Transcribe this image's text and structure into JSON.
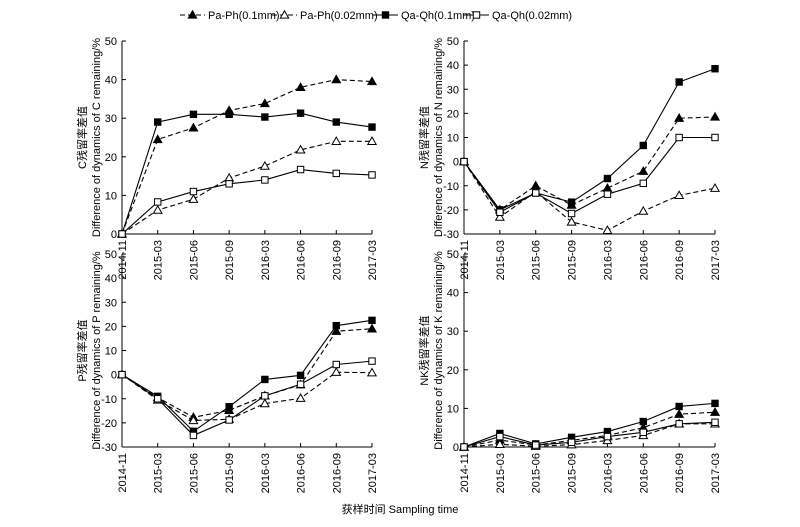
{
  "figure": {
    "xlabel": "获样时间 Sampling time"
  },
  "legend": [
    {
      "label": "Pa-Ph(0.1mm)",
      "marker": "filled-triangle",
      "dash": true
    },
    {
      "label": "Pa-Ph(0.02mm)",
      "marker": "open-triangle",
      "dash": true
    },
    {
      "label": "Qa-Qh(0.1mm)",
      "marker": "filled-square",
      "dash": false
    },
    {
      "label": "Qa-Qh(0.02mm)",
      "marker": "open-square",
      "dash": false
    }
  ],
  "chart_data": [
    {
      "type": "line",
      "ylabel_cn": "C残留率差值",
      "ylabel_en": "Difference of dynamics of C remaining/%",
      "ylim": [
        0,
        50
      ],
      "yticks": [
        0,
        10,
        20,
        30,
        40,
        50
      ],
      "categories": [
        "2014-11",
        "2015-03",
        "2015-06",
        "2015-09",
        "2016-03",
        "2016-06",
        "2016-09",
        "2017-03"
      ],
      "series": [
        {
          "name": "Pa-Ph(0.1mm)",
          "values": [
            0,
            24.5,
            27.5,
            32,
            33.8,
            38,
            40,
            39.5
          ]
        },
        {
          "name": "Pa-Ph(0.02mm)",
          "values": [
            0,
            6.2,
            9,
            14.5,
            17.6,
            21.8,
            24,
            24
          ]
        },
        {
          "name": "Qa-Qh(0.1mm)",
          "values": [
            0,
            29,
            31,
            31,
            30.3,
            31.3,
            29,
            27.7
          ]
        },
        {
          "name": "Qa-Qh(0.02mm)",
          "values": [
            0,
            8.3,
            11,
            13,
            14,
            16.7,
            15.7,
            15.3
          ]
        }
      ]
    },
    {
      "type": "line",
      "ylabel_cn": "N残留率差值",
      "ylabel_en": "Difference of dynamics of N remaining/%",
      "ylim": [
        -30,
        50
      ],
      "yticks": [
        -30,
        -20,
        -10,
        0,
        10,
        20,
        30,
        40,
        50
      ],
      "categories": [
        "2014-11",
        "2015-03",
        "2015-06",
        "2015-09",
        "2016-03",
        "2016-06",
        "2016-09",
        "2017-03"
      ],
      "series": [
        {
          "name": "Pa-Ph(0.1mm)",
          "values": [
            0,
            -20,
            -10,
            -18,
            -11,
            -4,
            18,
            18.5
          ]
        },
        {
          "name": "Pa-Ph(0.02mm)",
          "values": [
            0,
            -23,
            -12.5,
            -25,
            -28.5,
            -20.5,
            -14,
            -11
          ]
        },
        {
          "name": "Qa-Qh(0.1mm)",
          "values": [
            0,
            -20,
            -13,
            -16.8,
            -7,
            6.7,
            33,
            38.5
          ]
        },
        {
          "name": "Qa-Qh(0.02mm)",
          "values": [
            0,
            -21,
            -13,
            -21.5,
            -13.5,
            -9,
            10,
            10
          ]
        }
      ]
    },
    {
      "type": "line",
      "ylabel_cn": "P残留率差值",
      "ylabel_en": "Difference of dynamics of P remaining/%",
      "ylim": [
        -30,
        50
      ],
      "yticks": [
        -30,
        -20,
        -10,
        0,
        10,
        20,
        30,
        40,
        50
      ],
      "categories": [
        "2014-11",
        "2015-03",
        "2015-06",
        "2015-09",
        "2016-03",
        "2016-06",
        "2016-09",
        "2017-03"
      ],
      "series": [
        {
          "name": "Pa-Ph(0.1mm)",
          "values": [
            0,
            -9.5,
            -17.7,
            -14.8,
            -8.8,
            -4.2,
            18,
            19
          ]
        },
        {
          "name": "Pa-Ph(0.02mm)",
          "values": [
            0,
            -10.5,
            -19,
            -18.5,
            -12,
            -9.8,
            1,
            0.8
          ]
        },
        {
          "name": "Qa-Qh(0.1mm)",
          "values": [
            0,
            -9,
            -23.5,
            -13.3,
            -2,
            -0.3,
            20.3,
            22.5
          ]
        },
        {
          "name": "Qa-Qh(0.02mm)",
          "values": [
            0,
            -10,
            -25.2,
            -18.8,
            -8.8,
            -4,
            4.2,
            5.6
          ]
        }
      ]
    },
    {
      "type": "line",
      "ylabel_cn": "NK残留率差值",
      "ylabel_en": "Difference of dynamics of K remaining/%",
      "ylim": [
        0,
        50
      ],
      "yticks": [
        0,
        10,
        20,
        30,
        40,
        50
      ],
      "categories": [
        "2014-11",
        "2015-03",
        "2015-06",
        "2015-09",
        "2016-03",
        "2016-06",
        "2016-09",
        "2017-03"
      ],
      "series": [
        {
          "name": "Pa-Ph(0.1mm)",
          "values": [
            0,
            1.8,
            0.5,
            1.7,
            3,
            5,
            8.5,
            9
          ]
        },
        {
          "name": "Pa-Ph(0.02mm)",
          "values": [
            0,
            0.7,
            0.2,
            0.6,
            1.7,
            3,
            6,
            6
          ]
        },
        {
          "name": "Qa-Qh(0.1mm)",
          "values": [
            0,
            3.5,
            0.8,
            2.5,
            4,
            6.6,
            10.5,
            11.3
          ]
        },
        {
          "name": "Qa-Qh(0.02mm)",
          "values": [
            0,
            2.7,
            0.5,
            1.2,
            2.7,
            3.8,
            6,
            6.4
          ]
        }
      ]
    }
  ]
}
